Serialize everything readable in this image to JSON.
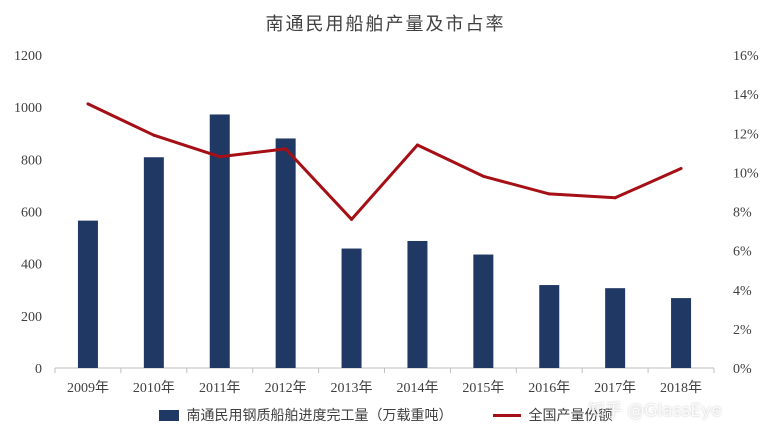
{
  "chart_data": {
    "type": "bar",
    "title": "南通民用船舶产量及市占率",
    "categories": [
      "2009年",
      "2010年",
      "2011年",
      "2012年",
      "2013年",
      "2014年",
      "2015年",
      "2016年",
      "2017年",
      "2018年"
    ],
    "series": [
      {
        "name": "南通民用钢质船舶进度完工量（万载重吨）",
        "type": "bar",
        "axis": "left",
        "color": "#203864",
        "values": [
          565,
          808,
          972,
          880,
          458,
          487,
          435,
          318,
          306,
          268
        ]
      },
      {
        "name": "全国产量份额",
        "type": "line",
        "axis": "right",
        "color": "#A50F15",
        "values": [
          0.135,
          0.119,
          0.108,
          0.112,
          0.076,
          0.114,
          0.098,
          0.089,
          0.087,
          0.102
        ]
      }
    ],
    "y_left": {
      "ylim": [
        0,
        1200
      ],
      "ticks": [
        0,
        200,
        400,
        600,
        800,
        1000,
        1200
      ],
      "tick_labels": [
        "0",
        "200",
        "400",
        "600",
        "800",
        "1000",
        "1200"
      ]
    },
    "y_right": {
      "ylim": [
        0,
        0.16
      ],
      "ticks": [
        0,
        0.02,
        0.04,
        0.06,
        0.08,
        0.1,
        0.12,
        0.14,
        0.16
      ],
      "tick_labels": [
        "0%",
        "2%",
        "4%",
        "6%",
        "8%",
        "10%",
        "12%",
        "14%",
        "16%"
      ]
    },
    "grid": false,
    "legend_position": "bottom"
  },
  "watermark": "知乎 @GlassEye"
}
